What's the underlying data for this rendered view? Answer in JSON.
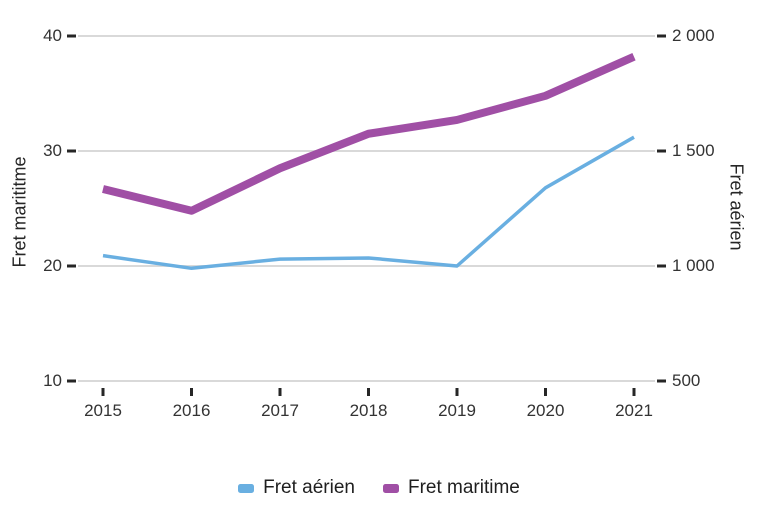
{
  "chart_data": {
    "type": "line",
    "title": "",
    "x": [
      2015,
      2016,
      2017,
      2018,
      2019,
      2020,
      2021
    ],
    "x_ticks": [
      "2015",
      "2016",
      "2017",
      "2018",
      "2019",
      "2020",
      "2021"
    ],
    "series": [
      {
        "name": "Fret aérien",
        "axis": "right",
        "color": "#69AFE1",
        "stroke_width": 3.5,
        "values": [
          1045,
          990,
          1030,
          1035,
          1000,
          1340,
          1560
        ]
      },
      {
        "name": "Fret maritime",
        "axis": "left",
        "color": "#A04FA5",
        "stroke_width": 8,
        "values": [
          26.7,
          24.8,
          28.5,
          31.5,
          32.7,
          34.8,
          38.2
        ]
      }
    ],
    "left_axis": {
      "label": "Fret marititme",
      "range": [
        10,
        40
      ],
      "ticks": [
        10,
        20,
        30,
        40
      ],
      "tick_labels": [
        "10",
        "20",
        "30",
        "40"
      ]
    },
    "right_axis": {
      "label": "Fret aérien",
      "range": [
        500,
        2000
      ],
      "tick_values": [
        500,
        1000,
        1500,
        2000
      ],
      "ticks": [
        "500",
        "1 000",
        "1 500",
        "2 000"
      ]
    },
    "grid": true,
    "legend_position": "bottom",
    "legend": [
      {
        "label": "Fret aérien",
        "color": "#69AFE1"
      },
      {
        "label": "Fret maritime",
        "color": "#A04FA5"
      }
    ],
    "colors": {
      "gridline": "#D9D9D9",
      "tick_mark": "#262626",
      "tick_text": "#333333"
    }
  }
}
